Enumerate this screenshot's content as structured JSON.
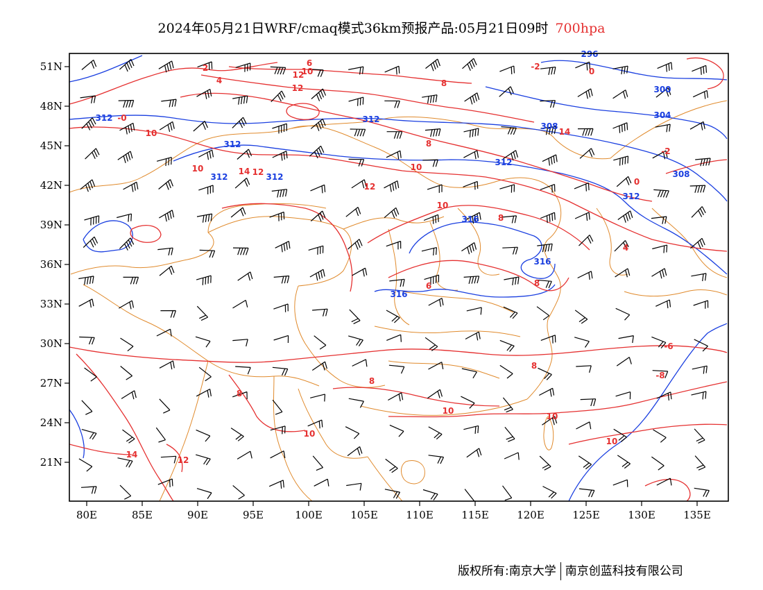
{
  "title": {
    "main": "2024年05月21日WRF/cmaq模式36km预报产品:05月21日09时",
    "level": "700hpa"
  },
  "colors": {
    "temperature": "#e53030",
    "geopotential": "#1a3fe0",
    "boundary": "#e08a2c",
    "wind": "#000000",
    "frame": "#000000"
  },
  "axes": {
    "lon_labels": [
      "80E",
      "85E",
      "90E",
      "95E",
      "100E",
      "105E",
      "110E",
      "115E",
      "120E",
      "125E",
      "130E",
      "135E"
    ],
    "lat_labels": [
      "51N",
      "48N",
      "45N",
      "42N",
      "39N",
      "36N",
      "33N",
      "30N",
      "27N",
      "24N",
      "21N"
    ]
  },
  "contour_labels": {
    "geopotential": [
      "296",
      "300",
      "304",
      "308",
      "312",
      "312",
      "312",
      "312",
      "312",
      "312",
      "312",
      "316",
      "316",
      "316",
      "308",
      "312"
    ],
    "temperature": [
      "2",
      "-2",
      "-0",
      "0",
      "4",
      "6",
      "10",
      "12",
      "12",
      "14",
      "12",
      "10",
      "8",
      "10",
      "12",
      "10",
      "8",
      "8",
      "6",
      "8",
      "14",
      "-2",
      "0",
      "4",
      "8",
      "-6",
      "-8",
      "8",
      "8",
      "10",
      "10",
      "10",
      "10",
      "12",
      "14",
      "10"
    ]
  },
  "footer": {
    "copyright": "版权所有:南京大学",
    "company": "南京创蓝科技有限公司"
  }
}
